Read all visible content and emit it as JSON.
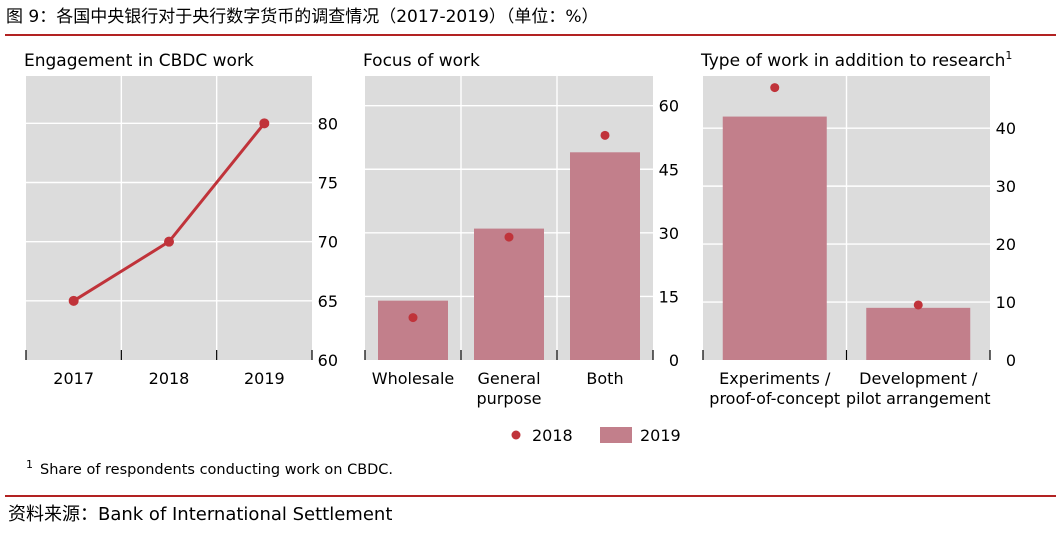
{
  "figure": {
    "title": "图 9：各国中央银行对于央行数字货币的调查情况（2017-2019）（单位：%）",
    "source": "资料来源：Bank of International Settlement"
  },
  "legend": {
    "items": [
      "2018",
      "2019"
    ]
  },
  "footnote": {
    "marker": "1",
    "text": "Share of respondents conducting work on CBDC."
  },
  "colors": {
    "background": "#dcdcdc",
    "grid": "#ffffff",
    "line": "#c0333a",
    "dot": "#c0333a",
    "bar": "#c27f8b",
    "rule": "#b22222"
  },
  "chart_data": [
    {
      "type": "line",
      "title": "Engagement in CBDC work",
      "categories": [
        "2017",
        "2018",
        "2019"
      ],
      "series": [
        {
          "values": [
            65,
            70,
            80
          ]
        }
      ],
      "ylim": [
        60,
        84
      ],
      "yticks": [
        60,
        65,
        70,
        75,
        80
      ],
      "y_axis_side": "right",
      "grid": true
    },
    {
      "type": "bar",
      "title": "Focus of work",
      "categories": [
        [
          "Wholesale"
        ],
        [
          "General",
          "purpose"
        ],
        [
          "Both"
        ]
      ],
      "series": [
        {
          "name": "2018",
          "mark": "dot",
          "values": [
            10,
            29,
            53
          ]
        },
        {
          "name": "2019",
          "mark": "bar",
          "values": [
            14,
            31,
            49
          ]
        }
      ],
      "ylim": [
        0,
        67
      ],
      "yticks": [
        0,
        15,
        30,
        45,
        60
      ],
      "y_axis_side": "right",
      "grid": true
    },
    {
      "type": "bar",
      "title": "Type of work in addition to research",
      "title_superscript": "1",
      "categories": [
        [
          "Experiments /",
          "proof-of-concept"
        ],
        [
          "Development /",
          "pilot arrangement"
        ]
      ],
      "series": [
        {
          "name": "2018",
          "mark": "dot",
          "values": [
            47,
            9.5
          ]
        },
        {
          "name": "2019",
          "mark": "bar",
          "values": [
            42,
            9
          ]
        }
      ],
      "ylim": [
        0,
        49
      ],
      "yticks": [
        0,
        10,
        20,
        30,
        40
      ],
      "y_axis_side": "right",
      "grid": true
    }
  ]
}
